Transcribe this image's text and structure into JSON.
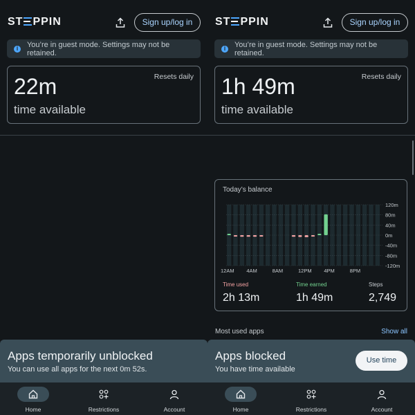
{
  "app": {
    "logo_prefix": "ST",
    "logo_suffix": "PPIN"
  },
  "colors": {
    "accent": "#4da7ff",
    "used": "#f4a3a3",
    "earned": "#73d18f",
    "sheet": "#3a4d57"
  },
  "left": {
    "header": {
      "signup_label": "Sign up/log in"
    },
    "guest_banner": "You’re in guest mode. Settings may not be retained.",
    "time_card": {
      "resets": "Resets daily",
      "value": "22m",
      "label": "time available"
    },
    "sheet": {
      "title": "Apps temporarily unblocked",
      "subtitle": "You can use all apps for the next 0m 52s."
    },
    "nav": [
      {
        "label": "Home",
        "icon": "home-icon",
        "active": true
      },
      {
        "label": "Restrictions",
        "icon": "restrictions-icon",
        "active": false
      },
      {
        "label": "Account",
        "icon": "account-icon",
        "active": false
      }
    ]
  },
  "right": {
    "header": {
      "signup_label": "Sign up/log in"
    },
    "guest_banner": "You’re in guest mode. Settings may not be retained.",
    "time_card": {
      "resets": "Resets daily",
      "value": "1h 49m",
      "label": "time available"
    },
    "balance": {
      "title": "Today’s balance",
      "stats": [
        {
          "label": "Time used",
          "value": "2h 13m"
        },
        {
          "label": "Time earned",
          "value": "1h 49m"
        },
        {
          "label": "Steps",
          "value": "2,749"
        }
      ]
    },
    "most_used": {
      "title": "Most used apps",
      "show_all": "Show all"
    },
    "sheet": {
      "title": "Apps blocked",
      "subtitle": "You have time available",
      "button": "Use time"
    },
    "nav": [
      {
        "label": "Home",
        "icon": "home-icon",
        "active": true
      },
      {
        "label": "Restrictions",
        "icon": "restrictions-icon",
        "active": false
      },
      {
        "label": "Account",
        "icon": "account-icon",
        "active": false
      }
    ]
  },
  "chart_data": {
    "type": "bar",
    "y_tick_labels": [
      "120m",
      "80m",
      "40m",
      "0m",
      "-40m",
      "-80m",
      "-120m"
    ],
    "x_tick_labels": [
      "12AM",
      "4AM",
      "8AM",
      "12PM",
      "4PM",
      "8PM"
    ],
    "ylim": [
      -120,
      120
    ],
    "hours": [
      0,
      1,
      2,
      3,
      4,
      5,
      6,
      7,
      8,
      9,
      10,
      11,
      12,
      13,
      14,
      15,
      16,
      17,
      18,
      19,
      20,
      21,
      22,
      23
    ],
    "values": [
      2,
      -5,
      -6,
      -6,
      -6,
      -2,
      0,
      0,
      0,
      0,
      -6,
      -7,
      -8,
      -3,
      3,
      82,
      0,
      0,
      0,
      0,
      0,
      0,
      0,
      0
    ],
    "grid": true
  }
}
